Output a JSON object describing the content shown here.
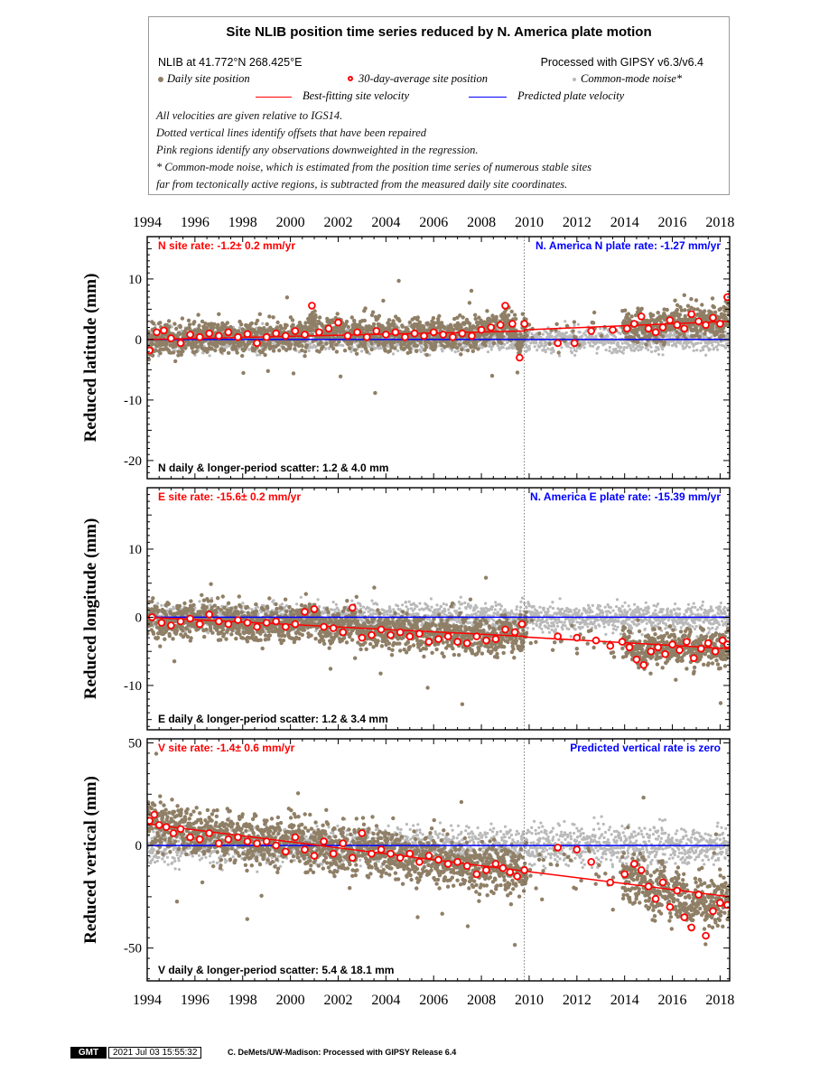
{
  "header": {
    "title": "Site NLIB position time series reduced by N. America plate motion",
    "site_location": "NLIB at 41.772°N 268.425°E",
    "processing": "Processed with GIPSY v6.3/v6.4",
    "legend": {
      "daily": "Daily site position",
      "avg30": "30-day-average site position",
      "cm": "Common-mode noise*",
      "best_fit": "Best-fitting site velocity",
      "predicted": "Predicted plate velocity"
    },
    "notes": [
      "All velocities are given relative to IGS14.",
      "Dotted vertical lines identify offsets that have been repaired",
      "Pink regions identify any observations downweighted in the regression.",
      "* Common-mode noise, which is estimated from the position time series of numerous stable sites",
      "far from tectonically active regions, is subtracted from the measured daily site coordinates."
    ]
  },
  "colors": {
    "daily": "#8f7f66",
    "common_mode": "#b9b9b9",
    "avg_ring": "#ff0000",
    "best_fit": "#ff0000",
    "predicted": "#0000ff",
    "site_rate_text": "#ff0000",
    "plate_rate_text": "#0000ff"
  },
  "footer": {
    "badge": "GMT",
    "timestamp": "2021 Jul 03 15:55:32",
    "credit": "C. DeMets/UW-Madison: Processed with GIPSY Release 6.4"
  },
  "chart_data": [
    {
      "type": "scatter",
      "component": "N",
      "ylabel": "Reduced latitude (mm)",
      "xlim": [
        1994.0,
        2018.4
      ],
      "ylim": [
        -23,
        17
      ],
      "x_ticks": [
        1994,
        1996,
        1998,
        2000,
        2002,
        2004,
        2006,
        2008,
        2010,
        2012,
        2014,
        2016,
        2018
      ],
      "y_ticks": [
        10,
        0,
        -10,
        -20
      ],
      "site_rate": "N site rate:  -1.2± 0.2 mm/yr",
      "plate_rate": "N. America N plate rate: -1.27 mm/yr",
      "scatter": "N daily & longer-period scatter:   1.2 &   4.0 mm",
      "offset_x": 2009.8,
      "best_fit_line": [
        [
          1994.0,
          0.0
        ],
        [
          2009.8,
          1.4
        ],
        [
          2009.8,
          1.6
        ],
        [
          2018.4,
          3.0
        ]
      ],
      "predicted_line": [
        [
          1994.0,
          0.0
        ],
        [
          2018.4,
          0.0
        ]
      ],
      "avg_30day": [
        [
          1994.1,
          -1.8
        ],
        [
          1994.4,
          1.2
        ],
        [
          1994.7,
          1.5
        ],
        [
          1995.0,
          0.2
        ],
        [
          1995.4,
          -0.6
        ],
        [
          1995.8,
          0.8
        ],
        [
          1996.2,
          0.4
        ],
        [
          1996.6,
          1.0
        ],
        [
          1997.0,
          0.6
        ],
        [
          1997.4,
          1.2
        ],
        [
          1997.8,
          0.4
        ],
        [
          1998.2,
          0.9
        ],
        [
          1998.6,
          -0.6
        ],
        [
          1999.0,
          0.4
        ],
        [
          1999.4,
          1.0
        ],
        [
          1999.8,
          0.6
        ],
        [
          2000.2,
          1.4
        ],
        [
          2000.6,
          0.8
        ],
        [
          2000.9,
          5.6
        ],
        [
          2001.2,
          1.2
        ],
        [
          2001.6,
          1.8
        ],
        [
          2002.0,
          2.8
        ],
        [
          2002.4,
          0.6
        ],
        [
          2002.8,
          1.2
        ],
        [
          2003.2,
          0.4
        ],
        [
          2003.6,
          1.4
        ],
        [
          2004.0,
          0.8
        ],
        [
          2004.4,
          1.2
        ],
        [
          2004.8,
          0.4
        ],
        [
          2005.2,
          1.0
        ],
        [
          2005.6,
          0.6
        ],
        [
          2006.0,
          1.2
        ],
        [
          2006.4,
          0.8
        ],
        [
          2006.8,
          0.4
        ],
        [
          2007.2,
          1.0
        ],
        [
          2007.6,
          0.6
        ],
        [
          2008.0,
          1.6
        ],
        [
          2008.4,
          2.0
        ],
        [
          2008.8,
          2.4
        ],
        [
          2009.0,
          5.6
        ],
        [
          2009.3,
          2.6
        ],
        [
          2009.6,
          -3.0
        ],
        [
          2009.8,
          2.6
        ],
        [
          2011.2,
          -0.6
        ],
        [
          2011.9,
          -0.6
        ],
        [
          2012.6,
          1.4
        ],
        [
          2013.5,
          1.6
        ],
        [
          2014.1,
          1.8
        ],
        [
          2014.4,
          2.6
        ],
        [
          2014.7,
          3.8
        ],
        [
          2015.0,
          1.8
        ],
        [
          2015.3,
          1.2
        ],
        [
          2015.6,
          2.0
        ],
        [
          2015.9,
          3.2
        ],
        [
          2016.2,
          2.4
        ],
        [
          2016.5,
          1.8
        ],
        [
          2016.8,
          4.2
        ],
        [
          2017.1,
          3.0
        ],
        [
          2017.4,
          2.4
        ],
        [
          2017.7,
          3.6
        ],
        [
          2018.0,
          2.6
        ],
        [
          2018.3,
          7.0
        ]
      ]
    },
    {
      "type": "scatter",
      "component": "E",
      "ylabel": "Reduced longitude (mm)",
      "xlim": [
        1994.0,
        2018.4
      ],
      "ylim": [
        -16.5,
        19
      ],
      "x_ticks": [
        1994,
        1996,
        1998,
        2000,
        2002,
        2004,
        2006,
        2008,
        2010,
        2012,
        2014,
        2016,
        2018
      ],
      "y_ticks": [
        10,
        0,
        -10
      ],
      "site_rate": "E site rate:  -15.6± 0.2 mm/yr",
      "plate_rate": "N. America E plate rate: -15.39 mm/yr",
      "scatter": "E daily & longer-period scatter:   1.2 &   3.4 mm",
      "offset_x": 2009.8,
      "best_fit_line": [
        [
          1994.0,
          0.0
        ],
        [
          2009.8,
          -2.8
        ],
        [
          2009.8,
          -2.9
        ],
        [
          2018.4,
          -4.6
        ]
      ],
      "predicted_line": [
        [
          1994.0,
          0.0
        ],
        [
          2018.4,
          0.0
        ]
      ],
      "avg_30day": [
        [
          1994.2,
          0.0
        ],
        [
          1994.6,
          -0.8
        ],
        [
          1995.0,
          -1.2
        ],
        [
          1995.4,
          -0.6
        ],
        [
          1995.8,
          -0.2
        ],
        [
          1996.2,
          -1.0
        ],
        [
          1996.6,
          0.4
        ],
        [
          1997.0,
          -0.6
        ],
        [
          1997.4,
          -1.0
        ],
        [
          1997.8,
          -0.4
        ],
        [
          1998.2,
          -0.8
        ],
        [
          1998.6,
          -1.4
        ],
        [
          1999.0,
          -0.8
        ],
        [
          1999.4,
          -0.6
        ],
        [
          1999.8,
          -1.4
        ],
        [
          2000.2,
          -1.0
        ],
        [
          2000.6,
          0.8
        ],
        [
          2001.0,
          1.2
        ],
        [
          2001.4,
          -1.4
        ],
        [
          2001.8,
          -1.6
        ],
        [
          2002.2,
          -2.2
        ],
        [
          2002.6,
          1.4
        ],
        [
          2003.0,
          -3.0
        ],
        [
          2003.4,
          -2.6
        ],
        [
          2003.8,
          -1.8
        ],
        [
          2004.2,
          -2.6
        ],
        [
          2004.6,
          -2.2
        ],
        [
          2005.0,
          -2.8
        ],
        [
          2005.4,
          -2.4
        ],
        [
          2005.8,
          -3.6
        ],
        [
          2006.2,
          -3.2
        ],
        [
          2006.6,
          -2.8
        ],
        [
          2007.0,
          -3.6
        ],
        [
          2007.4,
          -3.8
        ],
        [
          2007.8,
          -2.8
        ],
        [
          2008.2,
          -3.4
        ],
        [
          2008.6,
          -3.2
        ],
        [
          2009.0,
          -1.8
        ],
        [
          2009.4,
          -2.2
        ],
        [
          2009.7,
          -1.0
        ],
        [
          2011.2,
          -2.8
        ],
        [
          2012.0,
          -3.0
        ],
        [
          2012.8,
          -3.4
        ],
        [
          2013.4,
          -4.2
        ],
        [
          2013.9,
          -3.6
        ],
        [
          2014.2,
          -4.4
        ],
        [
          2014.5,
          -6.2
        ],
        [
          2014.8,
          -7.0
        ],
        [
          2015.1,
          -5.0
        ],
        [
          2015.4,
          -4.4
        ],
        [
          2015.7,
          -5.4
        ],
        [
          2016.0,
          -4.0
        ],
        [
          2016.3,
          -4.8
        ],
        [
          2016.6,
          -3.6
        ],
        [
          2016.9,
          -6.0
        ],
        [
          2017.2,
          -4.6
        ],
        [
          2017.5,
          -3.8
        ],
        [
          2017.8,
          -5.0
        ],
        [
          2018.1,
          -3.4
        ],
        [
          2018.3,
          -4.0
        ]
      ]
    },
    {
      "type": "scatter",
      "component": "V",
      "ylabel": "Reduced vertical (mm)",
      "xlim": [
        1994.0,
        2018.4
      ],
      "ylim": [
        -66,
        52
      ],
      "x_ticks": [
        1994,
        1996,
        1998,
        2000,
        2002,
        2004,
        2006,
        2008,
        2010,
        2012,
        2014,
        2016,
        2018
      ],
      "y_ticks": [
        50,
        0,
        -50
      ],
      "site_rate": "V site rate:  -1.4± 0.6 mm/yr",
      "plate_rate": "Predicted vertical rate is zero",
      "scatter": "V daily & longer-period scatter:   5.4 &   18.1 mm",
      "offset_x": 2009.8,
      "best_fit_line": [
        [
          1994.0,
          10.5
        ],
        [
          2009.8,
          -12.5
        ],
        [
          2009.8,
          -12.5
        ],
        [
          2018.4,
          -25.0
        ]
      ],
      "predicted_line": [
        [
          1994.0,
          0.0
        ],
        [
          2018.4,
          0.0
        ]
      ],
      "avg_30day": [
        [
          1994.1,
          12
        ],
        [
          1994.3,
          15
        ],
        [
          1994.5,
          10
        ],
        [
          1994.8,
          9
        ],
        [
          1995.1,
          6
        ],
        [
          1995.4,
          8
        ],
        [
          1995.8,
          4
        ],
        [
          1996.2,
          3
        ],
        [
          1996.6,
          6
        ],
        [
          1997.0,
          1
        ],
        [
          1997.4,
          3
        ],
        [
          1997.8,
          4
        ],
        [
          1998.2,
          2
        ],
        [
          1998.6,
          1
        ],
        [
          1999.0,
          2
        ],
        [
          1999.4,
          0
        ],
        [
          1999.8,
          -3
        ],
        [
          2000.2,
          4
        ],
        [
          2000.6,
          -2
        ],
        [
          2001.0,
          -5
        ],
        [
          2001.4,
          2
        ],
        [
          2001.8,
          -4
        ],
        [
          2002.2,
          1
        ],
        [
          2002.6,
          -6
        ],
        [
          2003.0,
          6
        ],
        [
          2003.4,
          -4
        ],
        [
          2003.8,
          -2
        ],
        [
          2004.2,
          -4
        ],
        [
          2004.6,
          -6
        ],
        [
          2005.0,
          -4
        ],
        [
          2005.4,
          -8
        ],
        [
          2005.8,
          -5
        ],
        [
          2006.2,
          -7
        ],
        [
          2006.6,
          -9
        ],
        [
          2007.0,
          -8
        ],
        [
          2007.4,
          -10
        ],
        [
          2007.8,
          -14
        ],
        [
          2008.2,
          -12
        ],
        [
          2008.6,
          -9
        ],
        [
          2008.9,
          -11
        ],
        [
          2009.2,
          -13
        ],
        [
          2009.5,
          -15
        ],
        [
          2009.8,
          -12
        ],
        [
          2011.2,
          -1
        ],
        [
          2012.0,
          -2
        ],
        [
          2012.6,
          -8
        ],
        [
          2013.4,
          -18
        ],
        [
          2014.0,
          -14
        ],
        [
          2014.4,
          -9
        ],
        [
          2014.7,
          -12
        ],
        [
          2015.0,
          -20
        ],
        [
          2015.3,
          -26
        ],
        [
          2015.6,
          -18
        ],
        [
          2015.9,
          -30
        ],
        [
          2016.2,
          -22
        ],
        [
          2016.5,
          -35
        ],
        [
          2016.8,
          -40
        ],
        [
          2017.1,
          -24
        ],
        [
          2017.4,
          -44
        ],
        [
          2017.7,
          -32
        ],
        [
          2018.0,
          -28
        ],
        [
          2018.3,
          -29
        ]
      ]
    }
  ]
}
